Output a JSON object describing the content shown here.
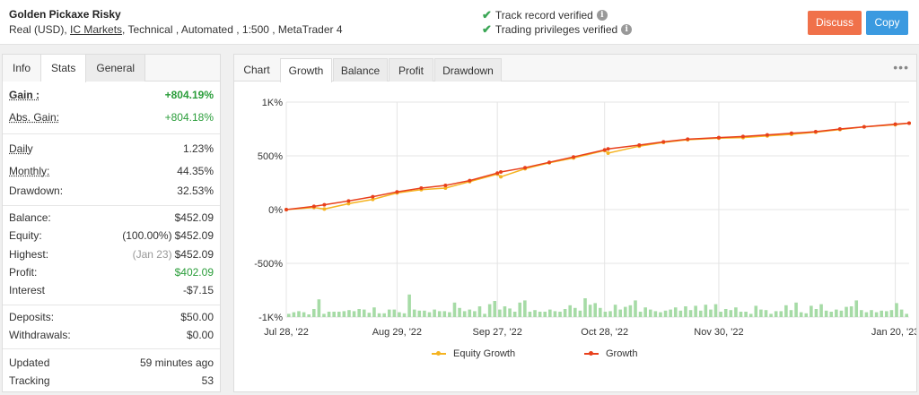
{
  "header": {
    "title": "Golden Pickaxe Risky",
    "account_type": "Real (USD),",
    "broker": "IC Markets",
    "details": ", Technical , Automated , 1:500 , MetaTrader 4",
    "verified_track": "Track record verified",
    "verified_trading": "Trading privileges verified",
    "discuss_label": "Discuss",
    "copy_label": "Copy",
    "check_icon": "check-icon",
    "info_icon": "info-icon"
  },
  "left_tabs": [
    "Info",
    "Stats",
    "General"
  ],
  "stats": {
    "gain_label": "Gain :",
    "gain_value": "+804.19%",
    "abs_gain_label": "Abs. Gain:",
    "abs_gain_value": "+804.18%",
    "daily_label": "Daily",
    "daily_value": "1.23%",
    "monthly_label": "Monthly:",
    "monthly_value": "44.35%",
    "drawdown_label": "Drawdown:",
    "drawdown_value": "32.53%",
    "balance_label": "Balance:",
    "balance_value": "$452.09",
    "equity_label": "Equity:",
    "equity_pct": "(100.00%)",
    "equity_value": "$452.09",
    "highest_label": "Highest:",
    "highest_date": "(Jan 23)",
    "highest_value": "$452.09",
    "profit_label": "Profit:",
    "profit_value": "$402.09",
    "interest_label": "Interest",
    "interest_value": "-$7.15",
    "deposits_label": "Deposits:",
    "deposits_value": "$50.00",
    "withdrawals_label": "Withdrawals:",
    "withdrawals_value": "$0.00",
    "updated_label": "Updated",
    "updated_value": "59 minutes ago",
    "tracking_label": "Tracking",
    "tracking_value": "53"
  },
  "chart_tabs": {
    "chart_label": "Chart",
    "tabs": [
      "Growth",
      "Balance",
      "Profit",
      "Drawdown"
    ],
    "active": "Growth",
    "more_icon": "more-dots-icon"
  },
  "colors": {
    "growth": "#e8401c",
    "equity": "#f5b320",
    "bars": "#a6dba6",
    "gain_green": "#2a9d3a",
    "discuss": "#f0714a",
    "copy": "#3b9ae0"
  },
  "chart_data": {
    "type": "line",
    "title": "",
    "xlabel": "",
    "ylabel": "",
    "y_ticks": [
      "1K%",
      "500%",
      "0%",
      "-500%",
      "-1K%"
    ],
    "y_tick_values": [
      1000,
      500,
      0,
      -500,
      -1000
    ],
    "ylim": [
      -1000,
      1000
    ],
    "x_tick_labels": [
      "Jul 28, '22",
      "Aug 29, '22",
      "Sep 27, '22",
      "Oct 28, '22",
      "Nov 30, '22",
      "Jan 20, '23"
    ],
    "x_tick_dates": [
      "2022-07-28",
      "2022-08-29",
      "2022-09-27",
      "2022-10-28",
      "2022-11-30",
      "2023-01-20"
    ],
    "x_range": [
      "2022-07-28",
      "2023-01-24"
    ],
    "grid": true,
    "legend_position": "bottom",
    "series": [
      {
        "name": "Equity Growth",
        "x": [
          "2022-07-28",
          "2022-08-05",
          "2022-08-08",
          "2022-08-15",
          "2022-08-22",
          "2022-08-29",
          "2022-09-05",
          "2022-09-12",
          "2022-09-19",
          "2022-09-27",
          "2022-09-28",
          "2022-10-05",
          "2022-10-12",
          "2022-10-19",
          "2022-10-28",
          "2022-10-29",
          "2022-11-07",
          "2022-11-14",
          "2022-11-21",
          "2022-11-30",
          "2022-12-07",
          "2022-12-14",
          "2022-12-21",
          "2022-12-28",
          "2023-01-04",
          "2023-01-11",
          "2023-01-20",
          "2023-01-24"
        ],
        "values": [
          0,
          20,
          5,
          55,
          95,
          155,
          185,
          200,
          260,
          330,
          305,
          380,
          435,
          480,
          550,
          525,
          590,
          625,
          650,
          665,
          670,
          685,
          700,
          720,
          745,
          770,
          790,
          804
        ]
      },
      {
        "name": "Growth",
        "x": [
          "2022-07-28",
          "2022-08-05",
          "2022-08-08",
          "2022-08-15",
          "2022-08-22",
          "2022-08-29",
          "2022-09-05",
          "2022-09-12",
          "2022-09-19",
          "2022-09-27",
          "2022-09-28",
          "2022-10-05",
          "2022-10-12",
          "2022-10-19",
          "2022-10-28",
          "2022-10-29",
          "2022-11-07",
          "2022-11-14",
          "2022-11-21",
          "2022-11-30",
          "2022-12-07",
          "2022-12-14",
          "2022-12-21",
          "2022-12-28",
          "2023-01-04",
          "2023-01-11",
          "2023-01-20",
          "2023-01-24"
        ],
        "values": [
          0,
          30,
          45,
          80,
          120,
          165,
          200,
          225,
          270,
          340,
          350,
          390,
          440,
          490,
          555,
          565,
          600,
          630,
          655,
          670,
          680,
          695,
          710,
          725,
          750,
          770,
          795,
          804
        ]
      }
    ],
    "bar_series": {
      "name": "",
      "values": [
        60,
        90,
        110,
        90,
        50,
        150,
        330,
        60,
        100,
        100,
        100,
        110,
        130,
        110,
        150,
        140,
        80,
        180,
        70,
        70,
        140,
        140,
        90,
        70,
        420,
        140,
        120,
        120,
        90,
        140,
        110,
        110,
        90,
        270,
        170,
        110,
        140,
        110,
        200,
        60,
        240,
        300,
        140,
        200,
        160,
        100,
        270,
        310,
        100,
        130,
        100,
        100,
        140,
        110,
        100,
        150,
        220,
        170,
        120,
        350,
        230,
        260,
        170,
        100,
        110,
        230,
        140,
        190,
        220,
        310,
        100,
        180,
        140,
        110,
        90,
        120,
        140,
        180,
        120,
        200,
        130,
        210,
        120,
        230,
        140,
        240,
        100,
        150,
        130,
        180,
        100,
        100,
        60,
        210,
        140,
        130,
        60,
        110,
        110,
        220,
        130,
        270,
        90,
        70,
        210,
        150,
        240,
        120,
        100,
        140,
        120,
        190,
        200,
        310,
        130,
        90,
        130,
        90,
        120,
        110,
        130,
        260,
        140,
        60
      ]
    }
  }
}
